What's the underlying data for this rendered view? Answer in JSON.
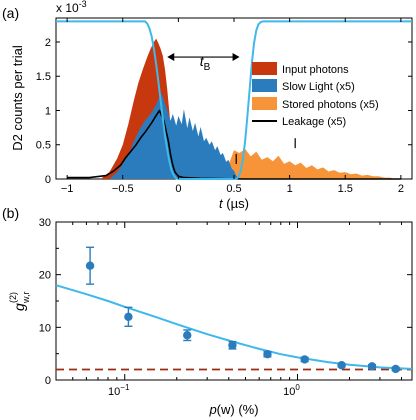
{
  "panels": {
    "a": "(a)",
    "b": "(b)"
  },
  "chart_data": [
    {
      "type": "area",
      "panel": "(a)",
      "ylabel": "D2 counts per trial",
      "xlabel_var": "t",
      "xlabel_unit": " (µs)",
      "yexponent_text": "x 10",
      "yexponent_power": "-3",
      "xlim": [
        -1.1,
        2.1
      ],
      "ylim": [
        0,
        2.35
      ],
      "xticks": [
        -1,
        -0.5,
        0,
        0.5,
        1,
        1.5,
        2
      ],
      "xticklabels": [
        "−1",
        "−0.5",
        "0",
        "0.5",
        "1",
        "1.5",
        "2"
      ],
      "yticks": [
        0,
        0.5,
        1,
        1.5,
        2
      ],
      "yticklabels": [
        "0",
        "0.5",
        "1",
        "1.5",
        "2"
      ],
      "annotation": {
        "var": "t",
        "sub": "B"
      },
      "legend_position": "right",
      "colors": {
        "input": "#c8380f",
        "slow": "#2a7cbd",
        "stored": "#f7943a",
        "leakage": "#000000",
        "control": "#3fb8ea"
      },
      "series": [
        {
          "name": "Input photons",
          "kind": "area",
          "x": [
            -0.7,
            -0.62,
            -0.55,
            -0.5,
            -0.45,
            -0.4,
            -0.36,
            -0.32,
            -0.28,
            -0.25,
            -0.22,
            -0.2,
            -0.18,
            -0.16,
            -0.14,
            -0.12,
            -0.1,
            -0.08,
            -0.06,
            -0.04,
            -0.02,
            0.0,
            0.02,
            0.04
          ],
          "y": [
            0,
            0.1,
            0.3,
            0.5,
            0.8,
            1.15,
            1.4,
            1.6,
            1.78,
            1.9,
            2.0,
            2.05,
            1.98,
            1.9,
            1.8,
            1.6,
            1.3,
            0.95,
            0.6,
            0.35,
            0.18,
            0.08,
            0.02,
            0
          ]
        },
        {
          "name": "Slow Light (x5)",
          "kind": "area",
          "x": [
            -0.62,
            -0.55,
            -0.5,
            -0.45,
            -0.4,
            -0.35,
            -0.3,
            -0.25,
            -0.2,
            -0.17,
            -0.15,
            -0.12,
            -0.1,
            -0.07,
            -0.05,
            -0.02,
            0.0,
            0.03,
            0.05,
            0.08,
            0.1,
            0.13,
            0.15,
            0.18,
            0.2,
            0.23,
            0.25,
            0.28,
            0.3,
            0.33,
            0.35,
            0.38,
            0.4,
            0.43,
            0.45,
            0.48,
            0.5,
            0.52,
            0.55
          ],
          "y": [
            0,
            0.1,
            0.22,
            0.35,
            0.55,
            0.72,
            0.85,
            0.95,
            1.08,
            1.2,
            1.25,
            1.1,
            1.0,
            0.85,
            0.95,
            0.78,
            0.92,
            0.8,
            1.02,
            0.74,
            0.9,
            0.7,
            0.82,
            0.62,
            0.76,
            0.55,
            0.6,
            0.5,
            0.55,
            0.42,
            0.48,
            0.35,
            0.38,
            0.25,
            0.28,
            0.15,
            0.12,
            0.05,
            0
          ]
        },
        {
          "name": "Stored photons (x5)",
          "kind": "area",
          "x": [
            0.42,
            0.45,
            0.5,
            0.55,
            0.6,
            0.65,
            0.7,
            0.75,
            0.8,
            0.85,
            0.9,
            0.95,
            1.0,
            1.05,
            1.1,
            1.15,
            1.2,
            1.25,
            1.3,
            1.35,
            1.4,
            1.45,
            1.5,
            1.55,
            1.6,
            1.65,
            1.7,
            1.75,
            1.8,
            1.85,
            1.9,
            1.95
          ],
          "y": [
            0,
            0.2,
            0.42,
            0.38,
            0.44,
            0.33,
            0.4,
            0.28,
            0.32,
            0.26,
            0.34,
            0.22,
            0.26,
            0.2,
            0.24,
            0.16,
            0.2,
            0.14,
            0.17,
            0.11,
            0.13,
            0.09,
            0.1,
            0.07,
            0.08,
            0.05,
            0.06,
            0.04,
            0.04,
            0.02,
            0.02,
            0
          ]
        },
        {
          "name": "Leakage (x5)",
          "kind": "line",
          "x": [
            -1.0,
            -0.8,
            -0.65,
            -0.58,
            -0.52,
            -0.47,
            -0.42,
            -0.38,
            -0.34,
            -0.3,
            -0.27,
            -0.24,
            -0.21,
            -0.19,
            -0.17,
            -0.15,
            -0.13,
            -0.11,
            -0.09,
            -0.07,
            -0.05,
            -0.03,
            0.0,
            0.05,
            0.2,
            0.6,
            1.0,
            2.0
          ],
          "y": [
            0.02,
            0.02,
            0.05,
            0.12,
            0.2,
            0.32,
            0.42,
            0.5,
            0.6,
            0.68,
            0.75,
            0.82,
            0.9,
            0.95,
            1.0,
            0.92,
            0.85,
            0.7,
            0.55,
            0.35,
            0.2,
            0.1,
            0.04,
            0.02,
            0.01,
            0.0,
            0.0,
            0.0
          ]
        },
        {
          "name": "control",
          "kind": "line",
          "x": [
            -1.1,
            -0.3,
            -0.28,
            -0.26,
            -0.24,
            -0.22,
            -0.2,
            -0.18,
            -0.16,
            -0.14,
            -0.12,
            -0.1,
            -0.08,
            -0.06,
            -0.04,
            -0.02,
            0.0,
            0.52,
            0.54,
            0.56,
            0.58,
            0.6,
            0.62,
            0.64,
            0.66,
            0.68,
            0.7,
            0.72,
            0.74,
            0.76,
            2.1
          ],
          "y": [
            2.3,
            2.3,
            2.27,
            2.2,
            2.08,
            1.9,
            1.68,
            1.42,
            1.15,
            0.88,
            0.63,
            0.42,
            0.25,
            0.12,
            0.05,
            0.01,
            0.0,
            0.0,
            0.03,
            0.12,
            0.28,
            0.55,
            0.9,
            1.3,
            1.68,
            1.98,
            2.17,
            2.26,
            2.29,
            2.3,
            2.3
          ]
        },
        {
          "name": "markers",
          "kind": "ticks",
          "x": [
            0.52,
            1.05
          ],
          "y": [
            0.22,
            0.45
          ]
        }
      ],
      "arrow": {
        "x1": -0.1,
        "x2": 0.55,
        "y": 1.78
      }
    },
    {
      "type": "scatter",
      "panel": "(b)",
      "ylabel_base": "g",
      "ylabel_sup": "(2)",
      "ylabel_sub": "w,r",
      "xlabel_var": "p",
      "xlabel_rest": "(w) (%)",
      "xscale": "log",
      "xlim": [
        0.04,
        4.6
      ],
      "ylim": [
        0,
        30
      ],
      "yticks": [
        0,
        10,
        20,
        30
      ],
      "yticklabels": [
        "0",
        "10",
        "20",
        "30"
      ],
      "xticks_major": [
        0.1,
        1
      ],
      "xticklabels": [
        {
          "base": "10",
          "exp": "−1"
        },
        {
          "base": "10",
          "exp": "0"
        }
      ],
      "colors": {
        "points": "#2a7cbd",
        "fit": "#3fb8ea",
        "reference": "#9b2b14"
      },
      "series": [
        {
          "name": "data",
          "kind": "points",
          "x": [
            0.063,
            0.105,
            0.23,
            0.42,
            0.67,
            1.1,
            1.8,
            2.7,
            3.7
          ],
          "y": [
            21.7,
            12.0,
            8.5,
            6.6,
            4.9,
            3.9,
            2.8,
            2.6,
            2.1
          ],
          "err": [
            3.5,
            1.8,
            1.0,
            0.7,
            0.5,
            0.4,
            0.3,
            0.3,
            0.3
          ]
        },
        {
          "name": "fit",
          "kind": "line",
          "x": [
            0.04,
            0.06,
            0.08,
            0.1,
            0.15,
            0.2,
            0.3,
            0.4,
            0.6,
            0.8,
            1.0,
            1.5,
            2.0,
            3.0,
            4.6
          ],
          "y": [
            18.0,
            16.3,
            15.0,
            13.9,
            12.0,
            10.6,
            8.7,
            7.5,
            5.9,
            4.9,
            4.3,
            3.4,
            2.9,
            2.4,
            2.1
          ]
        },
        {
          "name": "reference",
          "kind": "dashed",
          "x": [
            0.04,
            4.6
          ],
          "y": [
            2.0,
            2.0
          ]
        }
      ]
    }
  ]
}
